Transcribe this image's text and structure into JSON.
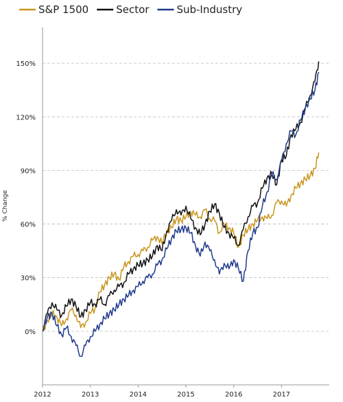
{
  "chart_data": {
    "type": "line",
    "title": "",
    "xlabel": "",
    "ylabel": "% Change",
    "x_ticks": [
      "2012",
      "2013",
      "2014",
      "2015",
      "2016",
      "2017"
    ],
    "y_ticks": [
      "0%",
      "30%",
      "60%",
      "90%",
      "120%",
      "150%"
    ],
    "xlim": [
      2012.0,
      2018.0
    ],
    "ylim": [
      -30,
      170
    ],
    "grid": "horizontal dashed",
    "legend_position": "top",
    "series": [
      {
        "name": "S&P 1500",
        "color": "#c8961e",
        "x": [
          2012.0,
          2012.1,
          2012.2,
          2012.3,
          2012.4,
          2012.5,
          2012.6,
          2012.7,
          2012.8,
          2012.9,
          2013.0,
          2013.1,
          2013.2,
          2013.3,
          2013.4,
          2013.5,
          2013.6,
          2013.7,
          2013.8,
          2013.9,
          2014.0,
          2014.1,
          2014.2,
          2014.3,
          2014.4,
          2014.5,
          2014.6,
          2014.7,
          2014.8,
          2014.9,
          2015.0,
          2015.1,
          2015.2,
          2015.3,
          2015.4,
          2015.5,
          2015.6,
          2015.7,
          2015.8,
          2015.9,
          2016.0,
          2016.1,
          2016.2,
          2016.3,
          2016.4,
          2016.5,
          2016.6,
          2016.7,
          2016.8,
          2016.9,
          2017.0,
          2017.1,
          2017.2,
          2017.3,
          2017.4,
          2017.5,
          2017.6,
          2017.7,
          2017.78
        ],
        "values": [
          0,
          6,
          10,
          8,
          3,
          7,
          12,
          9,
          2,
          5,
          10,
          13,
          22,
          26,
          30,
          32,
          29,
          36,
          39,
          42,
          43,
          45,
          47,
          51,
          53,
          49,
          56,
          58,
          63,
          62,
          64,
          67,
          65,
          64,
          68,
          63,
          62,
          55,
          60,
          58,
          55,
          47,
          54,
          57,
          60,
          62,
          64,
          63,
          65,
          72,
          73,
          70,
          76,
          80,
          83,
          85,
          87,
          91,
          100
        ]
      },
      {
        "name": "Sector",
        "color": "#111111",
        "x": [
          2012.0,
          2012.1,
          2012.2,
          2012.3,
          2012.4,
          2012.5,
          2012.6,
          2012.7,
          2012.8,
          2012.9,
          2013.0,
          2013.1,
          2013.2,
          2013.3,
          2013.4,
          2013.5,
          2013.6,
          2013.7,
          2013.8,
          2013.9,
          2014.0,
          2014.1,
          2014.2,
          2014.3,
          2014.4,
          2014.5,
          2014.6,
          2014.7,
          2014.8,
          2014.9,
          2015.0,
          2015.1,
          2015.2,
          2015.3,
          2015.4,
          2015.5,
          2015.6,
          2015.7,
          2015.8,
          2015.9,
          2016.0,
          2016.1,
          2016.2,
          2016.3,
          2016.4,
          2016.5,
          2016.6,
          2016.7,
          2016.8,
          2016.9,
          2017.0,
          2017.1,
          2017.2,
          2017.3,
          2017.4,
          2017.5,
          2017.6,
          2017.7,
          2017.78
        ],
        "values": [
          0,
          10,
          16,
          12,
          9,
          14,
          18,
          14,
          8,
          12,
          16,
          15,
          18,
          15,
          20,
          23,
          25,
          27,
          32,
          35,
          37,
          38,
          40,
          42,
          48,
          45,
          56,
          62,
          68,
          65,
          70,
          63,
          58,
          54,
          60,
          67,
          71,
          66,
          58,
          55,
          52,
          48,
          57,
          64,
          70,
          72,
          80,
          86,
          88,
          82,
          96,
          98,
          110,
          113,
          117,
          125,
          132,
          140,
          151
        ]
      },
      {
        "name": "Sub-Industry",
        "color": "#1e3a8c",
        "x": [
          2012.0,
          2012.1,
          2012.2,
          2012.3,
          2012.4,
          2012.5,
          2012.6,
          2012.7,
          2012.8,
          2012.9,
          2013.0,
          2013.1,
          2013.2,
          2013.3,
          2013.4,
          2013.5,
          2013.6,
          2013.7,
          2013.8,
          2013.9,
          2014.0,
          2014.1,
          2014.2,
          2014.3,
          2014.4,
          2014.5,
          2014.6,
          2014.7,
          2014.8,
          2014.9,
          2015.0,
          2015.1,
          2015.2,
          2015.3,
          2015.4,
          2015.5,
          2015.6,
          2015.7,
          2015.8,
          2015.9,
          2016.0,
          2016.1,
          2016.2,
          2016.3,
          2016.4,
          2016.5,
          2016.6,
          2016.7,
          2016.8,
          2016.9,
          2017.0,
          2017.1,
          2017.2,
          2017.3,
          2017.4,
          2017.5,
          2017.6,
          2017.7,
          2017.78
        ],
        "values": [
          0,
          8,
          10,
          3,
          -2,
          2,
          -3,
          -8,
          -14,
          -8,
          -3,
          0,
          4,
          7,
          10,
          12,
          15,
          18,
          20,
          23,
          25,
          28,
          30,
          32,
          37,
          40,
          46,
          52,
          56,
          57,
          58,
          55,
          48,
          42,
          50,
          45,
          40,
          32,
          38,
          35,
          40,
          35,
          28,
          45,
          55,
          58,
          70,
          78,
          88,
          85,
          95,
          105,
          112,
          110,
          118,
          125,
          130,
          135,
          145
        ]
      }
    ]
  }
}
